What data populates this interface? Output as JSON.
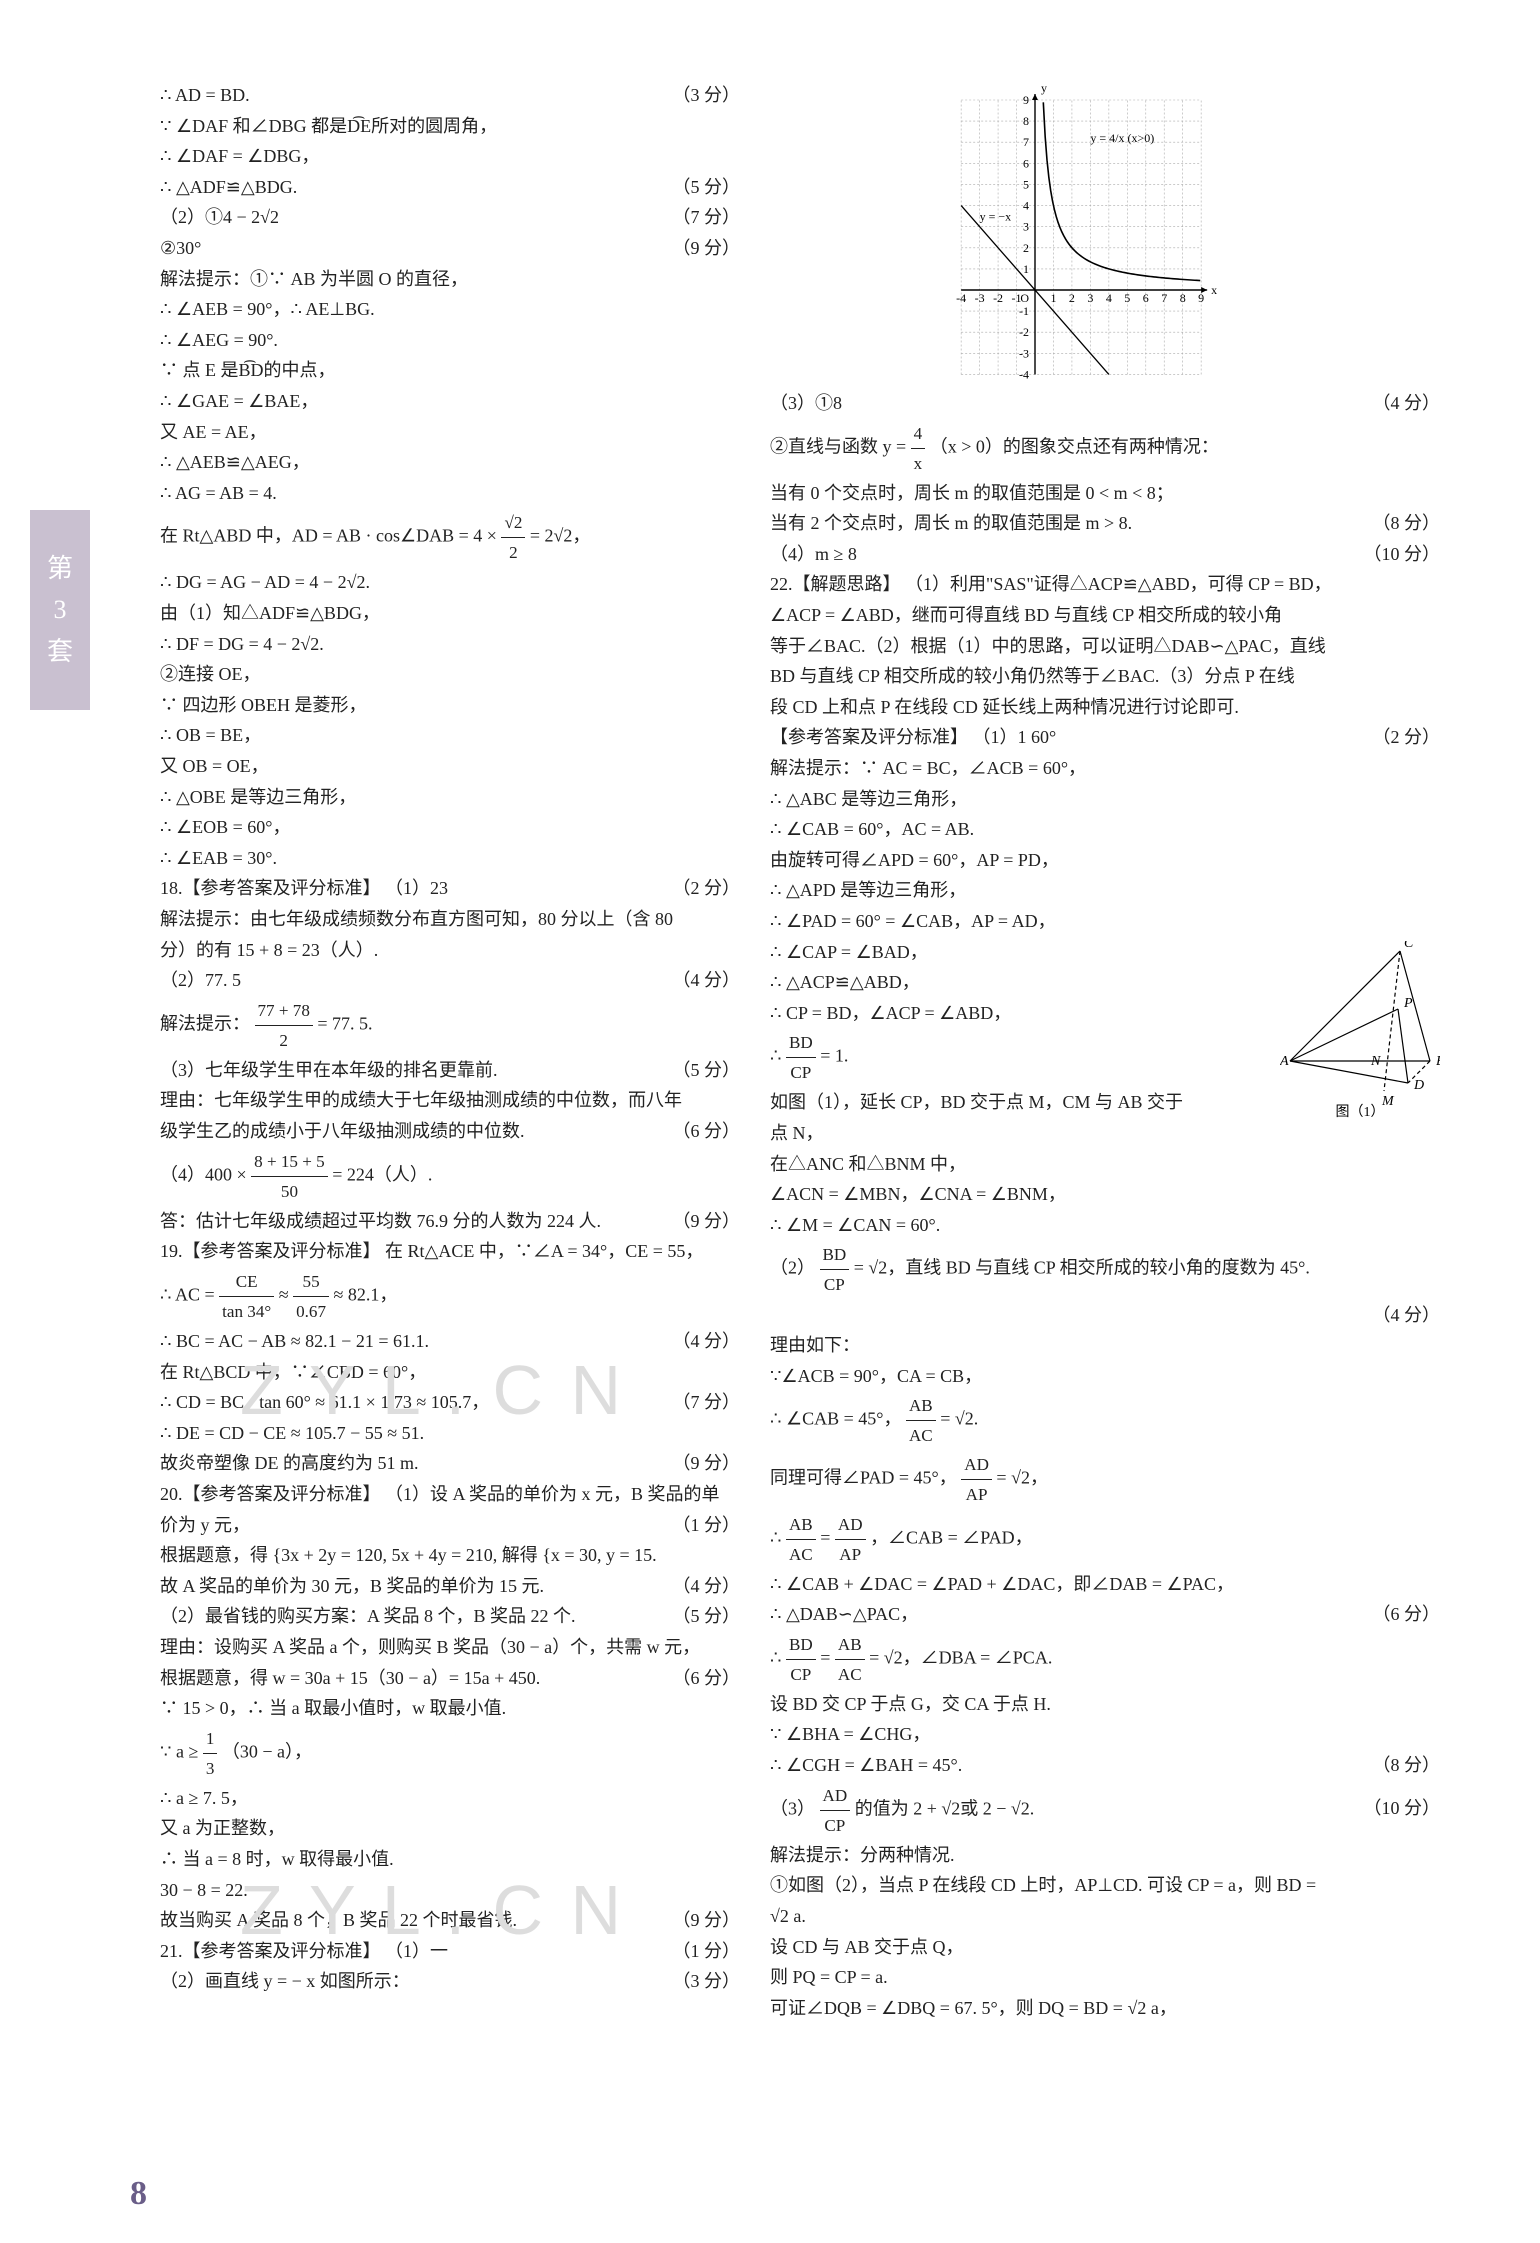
{
  "tab": {
    "line1": "第",
    "line2": "3",
    "line3": "套"
  },
  "pagenum": "8",
  "watermark": "Z Y L . C N",
  "left": {
    "l01": "∴ AD = BD.",
    "s01": "（3 分）",
    "l02": "∵ ∠DAF 和∠DBG 都是D͡E所对的圆周角，",
    "l03": "∴ ∠DAF = ∠DBG，",
    "l04": "∴ △ADF≌△BDG.",
    "s04": "（5 分）",
    "l05": "（2）①4 − 2√2",
    "s05": "（7 分）",
    "l06": "②30°",
    "s06": "（9 分）",
    "l07": "解法提示：①∵ AB 为半圆 O 的直径，",
    "l08": "∴ ∠AEB = 90°，∴ AE⊥BG.",
    "l09": "∴ ∠AEG = 90°.",
    "l10": "∵ 点 E 是B͡D的中点，",
    "l11": "∴ ∠GAE = ∠BAE，",
    "l12": "又 AE = AE，",
    "l13": "∴ △AEB≌△AEG，",
    "l14": "∴ AG = AB = 4.",
    "l15a": "在 Rt△ABD 中，AD = AB · cos∠DAB = 4 × ",
    "l15b_n": "√2",
    "l15b_d": "2",
    "l15c": " = 2√2，",
    "l16": "∴ DG = AG − AD = 4 − 2√2.",
    "l17": "由（1）知△ADF≌△BDG，",
    "l18": "∴ DF = DG = 4 − 2√2.",
    "l19": "②连接 OE，",
    "l20": "∵ 四边形 OBEH 是菱形，",
    "l21": "∴ OB = BE，",
    "l22": "又 OB = OE，",
    "l23": "∴ △OBE 是等边三角形，",
    "l24": "∴ ∠EOB = 60°，",
    "l25": "∴ ∠EAB = 30°.",
    "l26": "18.【参考答案及评分标准】 （1）23",
    "s26": "（2 分）",
    "l27": "解法提示：由七年级成绩频数分布直方图可知，80 分以上（含 80",
    "l28": "分）的有 15 + 8 = 23（人）.",
    "l29": "（2）77. 5",
    "s29": "（4 分）",
    "l30a": "解法提示：",
    "l30b_n": "77 + 78",
    "l30b_d": "2",
    "l30c": " = 77. 5.",
    "l31": "（3）七年级学生甲在本年级的排名更靠前.",
    "s31": "（5 分）",
    "l32": "理由：七年级学生甲的成绩大于七年级抽测成绩的中位数，而八年",
    "l33": "级学生乙的成绩小于八年级抽测成绩的中位数.",
    "s33": "（6 分）",
    "l34a": "（4）400 × ",
    "l34b_n": "8 + 15 + 5",
    "l34b_d": "50",
    "l34c": " = 224（人）.",
    "l35": "答：估计七年级成绩超过平均数 76.9 分的人数为 224 人.",
    "s35": "（9 分）",
    "l36": "19.【参考答案及评分标准】 在 Rt△ACE 中，∵∠A = 34°，CE = 55，",
    "l37a": "∴ AC = ",
    "l37b_n": "CE",
    "l37b_d": "tan 34°",
    "l37c": " ≈ ",
    "l37d_n": "55",
    "l37d_d": "0.67",
    "l37e": " ≈ 82.1，",
    "l38": "∴ BC = AC − AB ≈ 82.1 − 21 = 61.1.",
    "s38": "（4 分）",
    "l39": "在 Rt△BCD 中，∵∠CBD = 60°，",
    "l40": "∴ CD = BC · tan 60° ≈ 61.1 × 1.73 ≈ 105.7，",
    "s40": "（7 分）",
    "l41": "∴ DE = CD − CE ≈ 105.7 − 55 ≈ 51.",
    "l42": "故炎帝塑像 DE 的高度约为 51 m.",
    "s42": "（9 分）",
    "l43": "20.【参考答案及评分标准】 （1）设 A 奖品的单价为 x 元，B 奖品的单",
    "l44": "价为 y 元，",
    "s44": "（1 分）",
    "l45": "根据题意，得 {3x + 2y = 120,  5x + 4y = 210,  解得 {x = 30,  y = 15.",
    "l46": "故 A 奖品的单价为 30 元，B 奖品的单价为 15 元.",
    "s46": "（4 分）",
    "l47": "（2）最省钱的购买方案：A 奖品 8 个，B 奖品 22 个.",
    "s47": "（5 分）",
    "l48": "理由：设购买 A 奖品 a 个，则购买 B 奖品（30 − a）个，共需 w 元，",
    "l49": "根据题意，得 w = 30a + 15（30 − a）= 15a + 450.",
    "s49": "（6 分）",
    "l50": "∵ 15 > 0，∴ 当 a 取最小值时，w 取最小值.",
    "l51a": "∵ a ≥ ",
    "l51b_n": "1",
    "l51b_d": "3",
    "l51c": "（30 − a），",
    "l52": "∴ a ≥ 7. 5，",
    "l53": "又 a 为正整数，",
    "l54": "∴ 当 a = 8 时，w 取得最小值.",
    "l55": "30 − 8 = 22.",
    "l56": "故当购买 A 奖品 8 个，B 奖品 22 个时最省钱.",
    "s56": "（9 分）",
    "l57": "21.【参考答案及评分标准】 （1）一",
    "s57": "（1 分）",
    "l58": "（2）画直线 y = − x 如图所示：",
    "s58": "（3 分）"
  },
  "chart": {
    "type": "line",
    "background": "#ffffff",
    "grid_color": "#aaaaaa",
    "axis_color": "#000000",
    "x_range": [
      -4,
      9
    ],
    "y_range": [
      -4,
      9
    ],
    "x_ticks": [
      -4,
      -3,
      -2,
      -1,
      0,
      1,
      2,
      3,
      4,
      5,
      6,
      7,
      8,
      9
    ],
    "y_ticks": [
      -4,
      -3,
      -2,
      -1,
      0,
      1,
      2,
      3,
      4,
      5,
      6,
      7,
      8,
      9
    ],
    "curve_label": "y = 4/x  (x>0)",
    "line_label": "y = −x",
    "curve_color": "#000000",
    "line_color": "#000000",
    "line_dash": "4,3",
    "label_fontsize": 12
  },
  "right": {
    "r01": "（3）①8",
    "s01": "（4 分）",
    "r02a": "②直线与函数 y = ",
    "r02b_n": "4",
    "r02b_d": "x",
    "r02c": "（x > 0）的图象交点还有两种情况：",
    "r03": "当有 0 个交点时，周长 m 的取值范围是 0 < m < 8；",
    "r04": "当有 2 个交点时，周长 m 的取值范围是 m > 8.",
    "s04": "（8 分）",
    "r05": "（4）m ≥ 8",
    "s05": "（10 分）",
    "r06": "22.【解题思路】 （1）利用\"SAS\"证得△ACP≌△ABD，可得 CP = BD，",
    "r07": "∠ACP = ∠ABD，继而可得直线 BD 与直线 CP 相交所成的较小角",
    "r08": "等于∠BAC.（2）根据（1）中的思路，可以证明△DAB∽△PAC，直线",
    "r09": "BD 与直线 CP 相交所成的较小角仍然等于∠BAC.（3）分点 P 在线",
    "r10": "段 CD 上和点 P 在线段 CD 延长线上两种情况进行讨论即可.",
    "r11": "【参考答案及评分标准】 （1）1  60°",
    "s11": "（2 分）",
    "r12": "解法提示：∵ AC = BC，∠ACB = 60°，",
    "r13": "∴ △ABC 是等边三角形，",
    "r14": "∴ ∠CAB = 60°，AC = AB.",
    "r15": "由旋转可得∠APD = 60°，AP = PD，",
    "r16": "∴ △APD 是等边三角形，",
    "r17": "∴ ∠PAD = 60° = ∠CAB，AP = AD，",
    "r18": "∴ ∠CAP = ∠BAD，",
    "r19": "∴ △ACP≌△ABD，",
    "r20": "∴ CP = BD，∠ACP = ∠ABD，",
    "r21a": "∴ ",
    "r21b_n": "BD",
    "r21b_d": "CP",
    "r21c": " = 1.",
    "r22": "如图（1），延长 CP，BD 交于点 M，CM 与 AB 交于",
    "r23": "点 N，",
    "r24": "在△ANC 和△BNM 中，",
    "r25": "∠ACN = ∠MBN，∠CNA = ∠BNM，",
    "r26": "∴ ∠M = ∠CAN = 60°.",
    "r27a": "（2）",
    "r27b_n": "BD",
    "r27b_d": "CP",
    "r27c": " = √2，直线 BD 与直线 CP 相交所成的较小角的度数为 45°.",
    "s27": "（4 分）",
    "r28": "理由如下：",
    "r29": "∵∠ACB = 90°，CA = CB，",
    "r30a": "∴ ∠CAB = 45°，",
    "r30b_n": "AB",
    "r30b_d": "AC",
    "r30c": " = √2.",
    "r31a": "同理可得∠PAD = 45°，",
    "r31b_n": "AD",
    "r31b_d": "AP",
    "r31c": " = √2，",
    "r32a": "∴ ",
    "r32b_n": "AB",
    "r32b_d": "AC",
    "r32c": " = ",
    "r32d_n": "AD",
    "r32d_d": "AP",
    "r32e": "，∠CAB = ∠PAD，",
    "r33": "∴ ∠CAB + ∠DAC = ∠PAD + ∠DAC，即∠DAB = ∠PAC，",
    "r34": "∴ △DAB∽△PAC，",
    "s34": "（6 分）",
    "r35a": "∴ ",
    "r35b_n": "BD",
    "r35b_d": "CP",
    "r35c": " = ",
    "r35d_n": "AB",
    "r35d_d": "AC",
    "r35e": " = √2，∠DBA = ∠PCA.",
    "r36": "设 BD 交 CP 于点 G，交 CA 于点 H.",
    "r37": "∵ ∠BHA = ∠CHG，",
    "r38": "∴ ∠CGH = ∠BAH = 45°.",
    "s38": "（8 分）",
    "r39a": "（3）",
    "r39b_n": "AD",
    "r39b_d": "CP",
    "r39c": "的值为 2 + √2或 2 − √2.",
    "s39": "（10 分）",
    "r40": "解法提示：分两种情况.",
    "r41": "①如图（2），当点 P 在线段 CD 上时，AP⊥CD. 可设 CP = a，则 BD =",
    "r42": "√2 a.",
    "r43": "设 CD 与 AB 交于点 Q，",
    "r44": "则 PQ = CP = a.",
    "r45": "可证∠DQB = ∠DBQ = 67. 5°，则 DQ = BD = √2 a，"
  },
  "diagram1": {
    "type": "triangle_diagram",
    "labels": [
      "A",
      "B",
      "C",
      "P",
      "N",
      "M",
      "D"
    ],
    "caption": "图（1）",
    "stroke": "#000000",
    "text_color": "#000000",
    "fontsize": 14
  }
}
